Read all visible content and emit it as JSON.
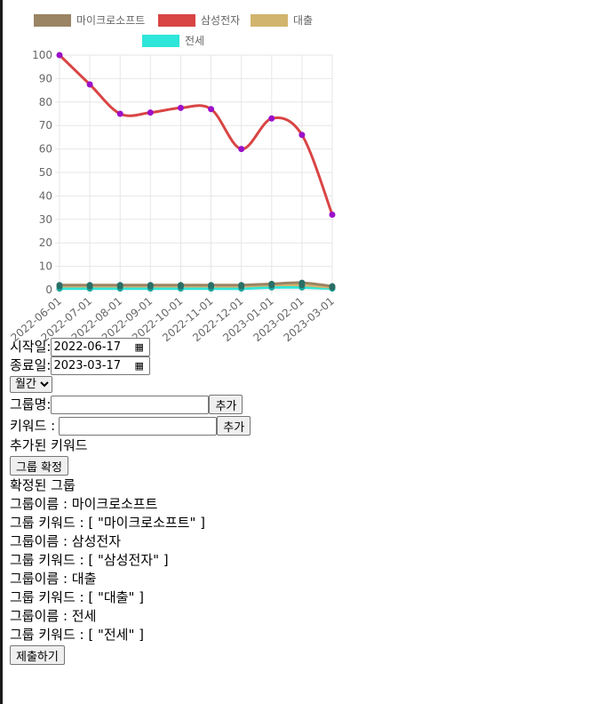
{
  "chart_data": {
    "type": "line",
    "categories": [
      "2022-06-01",
      "2022-07-01",
      "2022-08-01",
      "2022-09-01",
      "2022-10-01",
      "2022-11-01",
      "2022-12-01",
      "2023-01-01",
      "2023-02-01",
      "2023-03-01"
    ],
    "ylim": [
      0,
      100
    ],
    "yticks": [
      "0",
      "10",
      "20",
      "30",
      "40",
      "50",
      "60",
      "70",
      "80",
      "90",
      "100"
    ],
    "grid": true,
    "legend_position": "top",
    "series": [
      {
        "name": "마이크로소프트",
        "color": "#9a8464",
        "values": [
          2,
          2,
          2,
          2,
          2,
          2,
          2,
          2.5,
          3,
          1.5
        ]
      },
      {
        "name": "삼성전자",
        "color": "#d94444",
        "values": [
          100,
          87.5,
          75,
          75.5,
          77.5,
          77,
          60,
          73,
          66,
          32
        ]
      },
      {
        "name": "대출",
        "color": "#d1b46e",
        "values": [
          1.5,
          1.5,
          1.5,
          1.5,
          1.5,
          1.5,
          1.5,
          2,
          2,
          1
        ]
      },
      {
        "name": "전세",
        "color": "#2ee6d9",
        "values": [
          0.5,
          0.5,
          0.5,
          0.5,
          0.5,
          0.5,
          0.5,
          1,
          1,
          0.5
        ]
      }
    ]
  },
  "form": {
    "start_label": "시작일:",
    "start_value": "2022-06-17",
    "end_label": "종료일:",
    "end_value": "2023-03-17",
    "period_selected": "월간",
    "group_name_label": "그룹명:",
    "group_name_value": "",
    "add_label": "추가",
    "keyword_label": "키워드 :",
    "keyword_value": "",
    "added_keywords_label": "추가된 키워드",
    "confirm_group_label": "그룹 확정",
    "confirmed_groups_label": "확정된 그룹",
    "submit_label": "제출하기"
  },
  "groups": [
    {
      "name_line": "그룹이름 : 마이크로소프트",
      "keyword_line": "그룹 키워드 : [ \"마이크로소프트\" ]"
    },
    {
      "name_line": "그룹이름 : 삼성전자",
      "keyword_line": "그룹 키워드 : [ \"삼성전자\" ]"
    },
    {
      "name_line": "그룹이름 : 대출",
      "keyword_line": "그룹 키워드 : [ \"대출\" ]"
    },
    {
      "name_line": "그룹이름 : 전세",
      "keyword_line": "그룹 키워드 : [ \"전세\" ]"
    }
  ]
}
